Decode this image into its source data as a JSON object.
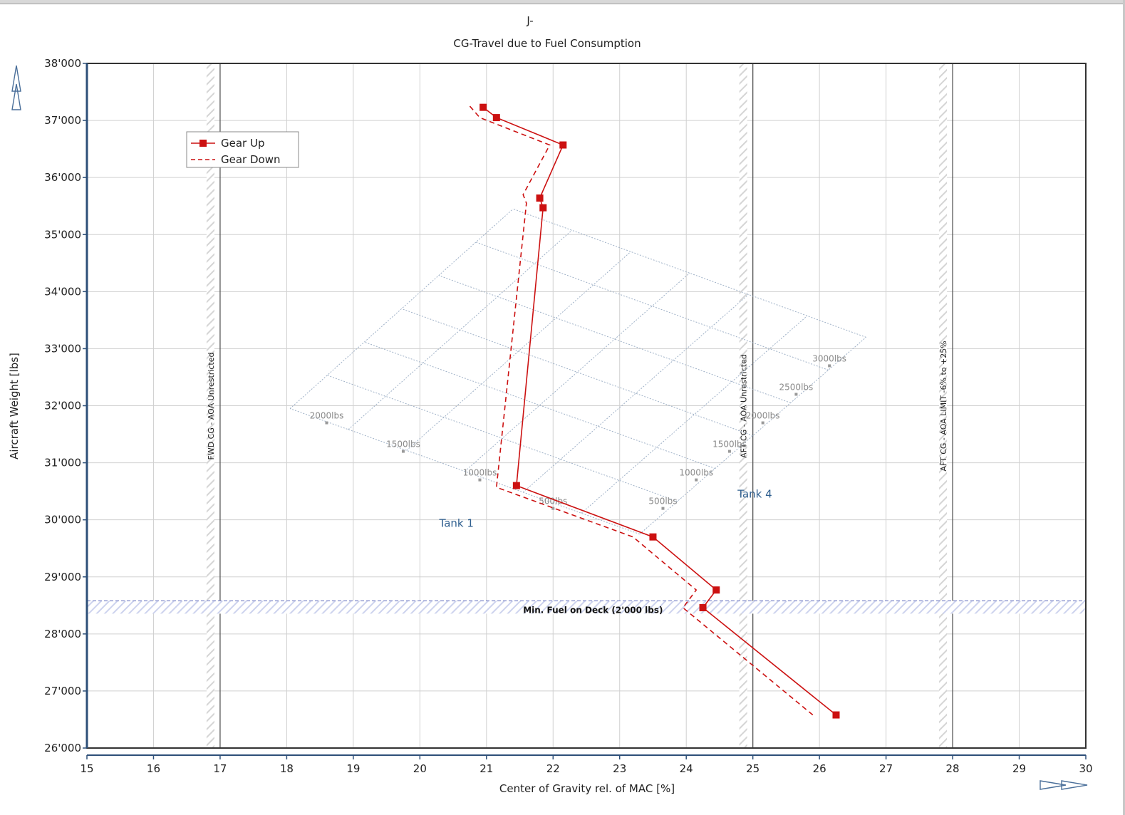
{
  "chart_data": {
    "type": "line",
    "title": "J-",
    "subtitle": "CG-Travel due to Fuel Consumption",
    "xlabel": "Center of Gravity rel. of MAC [%]",
    "ylabel": "Aircraft Weight [lbs]",
    "xlim": [
      15,
      30
    ],
    "ylim": [
      26000,
      38000
    ],
    "x_ticks": [
      15,
      16,
      17,
      18,
      19,
      20,
      21,
      22,
      23,
      24,
      25,
      26,
      27,
      28,
      29,
      30
    ],
    "x_tick_labels": [
      "15",
      "16",
      "17",
      "18",
      "19",
      "20",
      "21",
      "22",
      "23",
      "24",
      "25",
      "26",
      "27",
      "28",
      "29",
      "30"
    ],
    "y_ticks": [
      26000,
      27000,
      28000,
      29000,
      30000,
      31000,
      32000,
      33000,
      34000,
      35000,
      36000,
      37000,
      38000
    ],
    "y_tick_labels": [
      "26'000",
      "27'000",
      "28'000",
      "29'000",
      "30'000",
      "31'000",
      "32'000",
      "33'000",
      "34'000",
      "35'000",
      "36'000",
      "37'000",
      "38'000"
    ],
    "grid": true,
    "legend_position": "top-left",
    "series": [
      {
        "name": "Gear Up",
        "style": "solid",
        "marker": "square",
        "color": "#cc1111",
        "x": [
          20.95,
          21.15,
          22.15,
          21.8,
          21.85,
          21.45,
          23.5,
          24.45,
          24.25,
          26.25
        ],
        "y": [
          37230,
          37050,
          36570,
          35640,
          35470,
          30600,
          29700,
          28770,
          28460,
          26580
        ]
      },
      {
        "name": "Gear Down",
        "style": "dashed",
        "marker": "none",
        "color": "#cc1111",
        "x": [
          20.75,
          20.9,
          21.95,
          21.55,
          21.6,
          21.15,
          23.2,
          24.15,
          23.95,
          25.9
        ],
        "y": [
          37250,
          37050,
          36570,
          35700,
          35550,
          30570,
          29700,
          28770,
          28460,
          26580
        ]
      }
    ],
    "vertical_limits": [
      {
        "x": 17,
        "label": "FWD CG - AOA Unrestricted"
      },
      {
        "x": 25,
        "label": "AFT CG - AOA Unrestricted"
      },
      {
        "x": 28,
        "label": "AFT CG - AOA LIMIT -6% to +25%"
      }
    ],
    "horizontal_limits": [
      {
        "y": 28580,
        "label": "Min. Fuel on Deck (2'000 lbs)"
      }
    ],
    "fuel_grid": {
      "tank1_label": "Tank 1",
      "tank4_label": "Tank 4",
      "corners": {
        "origin": [
          23.3,
          29750
        ],
        "tank1_max": [
          18.05,
          31950
        ],
        "tank4_max": [
          26.7,
          33200
        ],
        "far": [
          21.4,
          35450
        ]
      },
      "tank1_labels": [
        {
          "text": "500lbs",
          "x": 22.0,
          "y": 30200
        },
        {
          "text": "1000lbs",
          "x": 20.9,
          "y": 30700
        },
        {
          "text": "1500lbs",
          "x": 19.75,
          "y": 31200
        },
        {
          "text": "2000lbs",
          "x": 18.6,
          "y": 31700
        }
      ],
      "tank4_labels": [
        {
          "text": "500lbs",
          "x": 23.65,
          "y": 30200
        },
        {
          "text": "1000lbs",
          "x": 24.15,
          "y": 30700
        },
        {
          "text": "1500lbs",
          "x": 24.65,
          "y": 31200
        },
        {
          "text": "2000lbs",
          "x": 25.15,
          "y": 31700
        },
        {
          "text": "2500lbs",
          "x": 25.65,
          "y": 32200
        },
        {
          "text": "3000lbs",
          "x": 26.15,
          "y": 32700
        }
      ]
    }
  }
}
